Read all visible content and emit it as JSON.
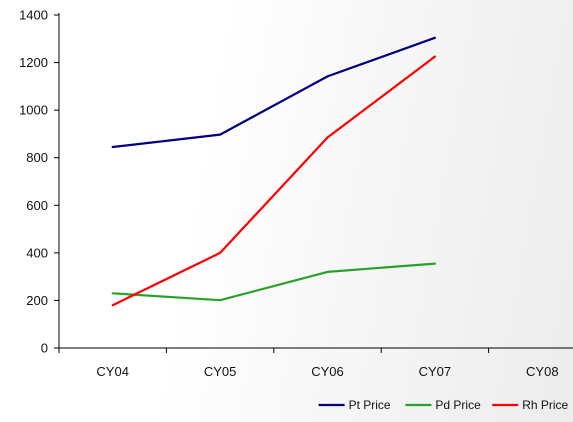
{
  "chart_data": {
    "type": "line",
    "categories": [
      "CY04",
      "CY05",
      "CY06",
      "CY07",
      "CY08"
    ],
    "series": [
      {
        "name": "Pt Price",
        "color": "#000080",
        "values": [
          845,
          897,
          1142,
          1304,
          null
        ]
      },
      {
        "name": "Pd Price",
        "color": "#2ca02c",
        "values": [
          230,
          201,
          320,
          355,
          null
        ]
      },
      {
        "name": "Rh Price",
        "color": "#ff0000",
        "values": [
          180,
          400,
          885,
          1225,
          null
        ]
      }
    ],
    "yticks": [
      0,
      200,
      400,
      600,
      800,
      1000,
      1200,
      1400
    ],
    "ylim": [
      0,
      1400
    ],
    "grid": false,
    "legend_position": "bottom-right"
  }
}
